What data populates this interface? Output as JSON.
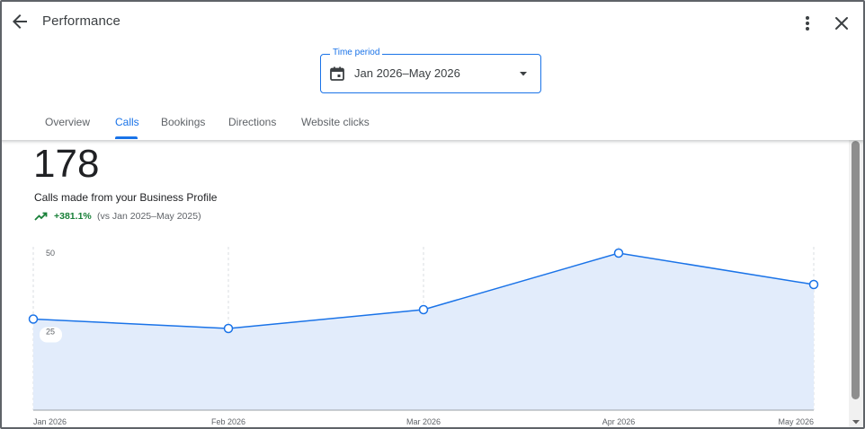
{
  "header": {
    "title": "Performance",
    "back_icon": "arrow-back-icon",
    "more_icon": "more-vert-icon",
    "close_icon": "close-icon"
  },
  "time_period": {
    "label": "Time period",
    "value": "Jan 2026–May 2026",
    "icon": "calendar-icon",
    "dropdown_icon": "arrow-drop-down-icon"
  },
  "tabs": [
    {
      "label": "Overview",
      "active": false
    },
    {
      "label": "Calls",
      "active": true
    },
    {
      "label": "Bookings",
      "active": false
    },
    {
      "label": "Directions",
      "active": false
    },
    {
      "label": "Website clicks",
      "active": false
    }
  ],
  "metric": {
    "total": "178",
    "label": "Calls made from your Business Profile",
    "trend_icon": "trending-up-icon",
    "trend_pct": "+381.1%",
    "trend_compare": "(vs Jan 2025–May 2025)"
  },
  "colors": {
    "accent": "#1a73e8",
    "line": "#1a73e8",
    "fill": "#e2ecfb",
    "positive": "#188038"
  },
  "chart_data": {
    "type": "area",
    "categories": [
      "Jan 2026",
      "Feb 2026",
      "Mar 2026",
      "Apr 2026",
      "May 2026"
    ],
    "values": [
      29,
      26,
      32,
      50,
      40
    ],
    "yticks": [
      "50",
      "25"
    ],
    "ylim": [
      0,
      50
    ],
    "grid": "vertical dashed"
  }
}
